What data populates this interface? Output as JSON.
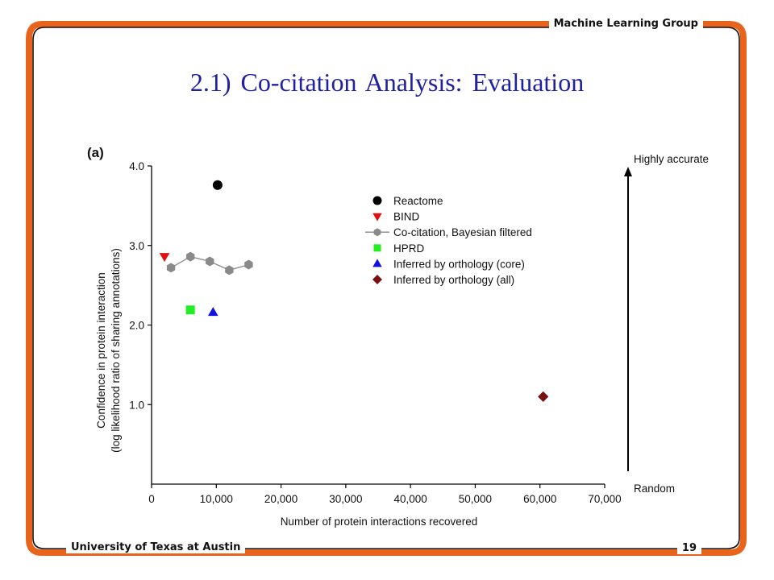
{
  "slide": {
    "header_right": "Machine Learning Group",
    "footer_left": "University of Texas at Austin",
    "page_number": "19",
    "title": "2.1) Co-citation Analysis: Evaluation",
    "accent_color": "#e8641c",
    "title_color": "#2020a0"
  },
  "chart_data": {
    "type": "scatter",
    "panel_label": "(a)",
    "xlabel": "Number of protein interactions recovered",
    "ylabel_line1": "Confidence in protein interaction",
    "ylabel_line2": "(log likelihood ratio of sharing annotations)",
    "xlim": [
      0,
      70000
    ],
    "ylim": [
      0,
      4.0
    ],
    "x_ticks": [
      0,
      10000,
      20000,
      30000,
      40000,
      50000,
      60000,
      70000
    ],
    "x_tick_labels": [
      "0",
      "10,000",
      "20,000",
      "30,000",
      "40,000",
      "50,000",
      "60,000",
      "70,000"
    ],
    "y_ticks": [
      1.0,
      2.0,
      3.0,
      4.0
    ],
    "y_tick_labels": [
      "1.0",
      "2.0",
      "3.0",
      "4.0"
    ],
    "grid": false,
    "legend_position": "upper-center",
    "series": [
      {
        "name": "Reactome",
        "marker": "circle",
        "color": "#000000",
        "points": [
          [
            10200,
            3.76
          ]
        ]
      },
      {
        "name": "BIND",
        "marker": "triangle-down",
        "color": "#e01010",
        "points": [
          [
            2000,
            2.86
          ]
        ]
      },
      {
        "name": "Co-citation, Bayesian filtered",
        "marker": "hexagon",
        "color": "#8a8a8a",
        "line": true,
        "points": [
          [
            3000,
            2.72
          ],
          [
            6000,
            2.86
          ],
          [
            9000,
            2.8
          ],
          [
            12000,
            2.69
          ],
          [
            15000,
            2.76
          ]
        ]
      },
      {
        "name": "HPRD",
        "marker": "square",
        "color": "#22ee22",
        "points": [
          [
            6000,
            2.19
          ]
        ]
      },
      {
        "name": "Inferred by orthology (core)",
        "marker": "triangle-up",
        "color": "#1010e0",
        "points": [
          [
            9500,
            2.16
          ]
        ]
      },
      {
        "name": "Inferred by orthology (all)",
        "marker": "diamond",
        "color": "#7a1010",
        "points": [
          [
            60500,
            1.1
          ]
        ]
      }
    ],
    "arrow_top_label": "Highly accurate",
    "arrow_bottom_label": "Random"
  }
}
